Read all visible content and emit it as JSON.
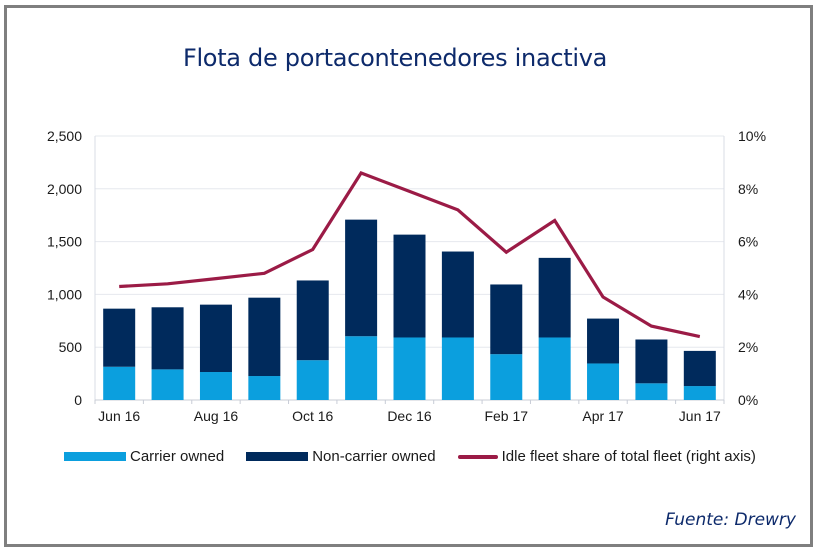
{
  "colors": {
    "carrier": "#0b9fde",
    "non_carrier": "#002a5c",
    "idle_line": "#9b1b46",
    "title": "#0d2a6b",
    "frame": "#7f7f7f",
    "grid": "#e6e8ee"
  },
  "chart_data": {
    "type": "bar",
    "title": "Flota de portacontenedores inactiva",
    "source": "Fuente: Drewry",
    "xlabel": "",
    "ylabel": "",
    "ylim": [
      0,
      2500
    ],
    "y2lim": [
      0,
      10
    ],
    "grid": true,
    "legend_position": "bottom",
    "categories": [
      "Jun 16",
      "Jul 16",
      "Aug 16",
      "Sep 16",
      "Oct 16",
      "Nov 16",
      "Dec 16",
      "Jan 17",
      "Feb 17",
      "Mar 17",
      "Apr 17",
      "May 17",
      "Jun 17"
    ],
    "x_tick_labels": [
      "Jun 16",
      "Aug 16",
      "Oct 16",
      "Dec 16",
      "Feb 17",
      "Apr 17",
      "Jun 17"
    ],
    "y_tick_labels": [
      "0",
      "500",
      "1,000",
      "1,500",
      "2,000",
      "2,500"
    ],
    "y_ticks": [
      0,
      500,
      1000,
      1500,
      2000,
      2500
    ],
    "y2_tick_labels": [
      "0%",
      "2%",
      "4%",
      "6%",
      "8%",
      "10%"
    ],
    "y2_ticks": [
      0,
      2,
      4,
      6,
      8,
      10
    ],
    "series": [
      {
        "name": "Carrier owned",
        "type": "stacked-bar",
        "axis": "left",
        "values": [
          315,
          290,
          265,
          227,
          377,
          604,
          592,
          592,
          434,
          592,
          346,
          158,
          132
        ]
      },
      {
        "name": "Non-carrier owned",
        "type": "stacked-bar",
        "axis": "left",
        "values": [
          550,
          588,
          638,
          742,
          755,
          1104,
          974,
          814,
          660,
          754,
          425,
          415,
          333
        ]
      },
      {
        "name": "Idle fleet share of total fleet (right axis)",
        "type": "line",
        "axis": "right",
        "unit": "%",
        "values": [
          4.3,
          4.4,
          4.6,
          4.8,
          5.7,
          8.6,
          7.9,
          7.2,
          5.6,
          6.8,
          3.9,
          2.8,
          2.4
        ]
      }
    ]
  }
}
